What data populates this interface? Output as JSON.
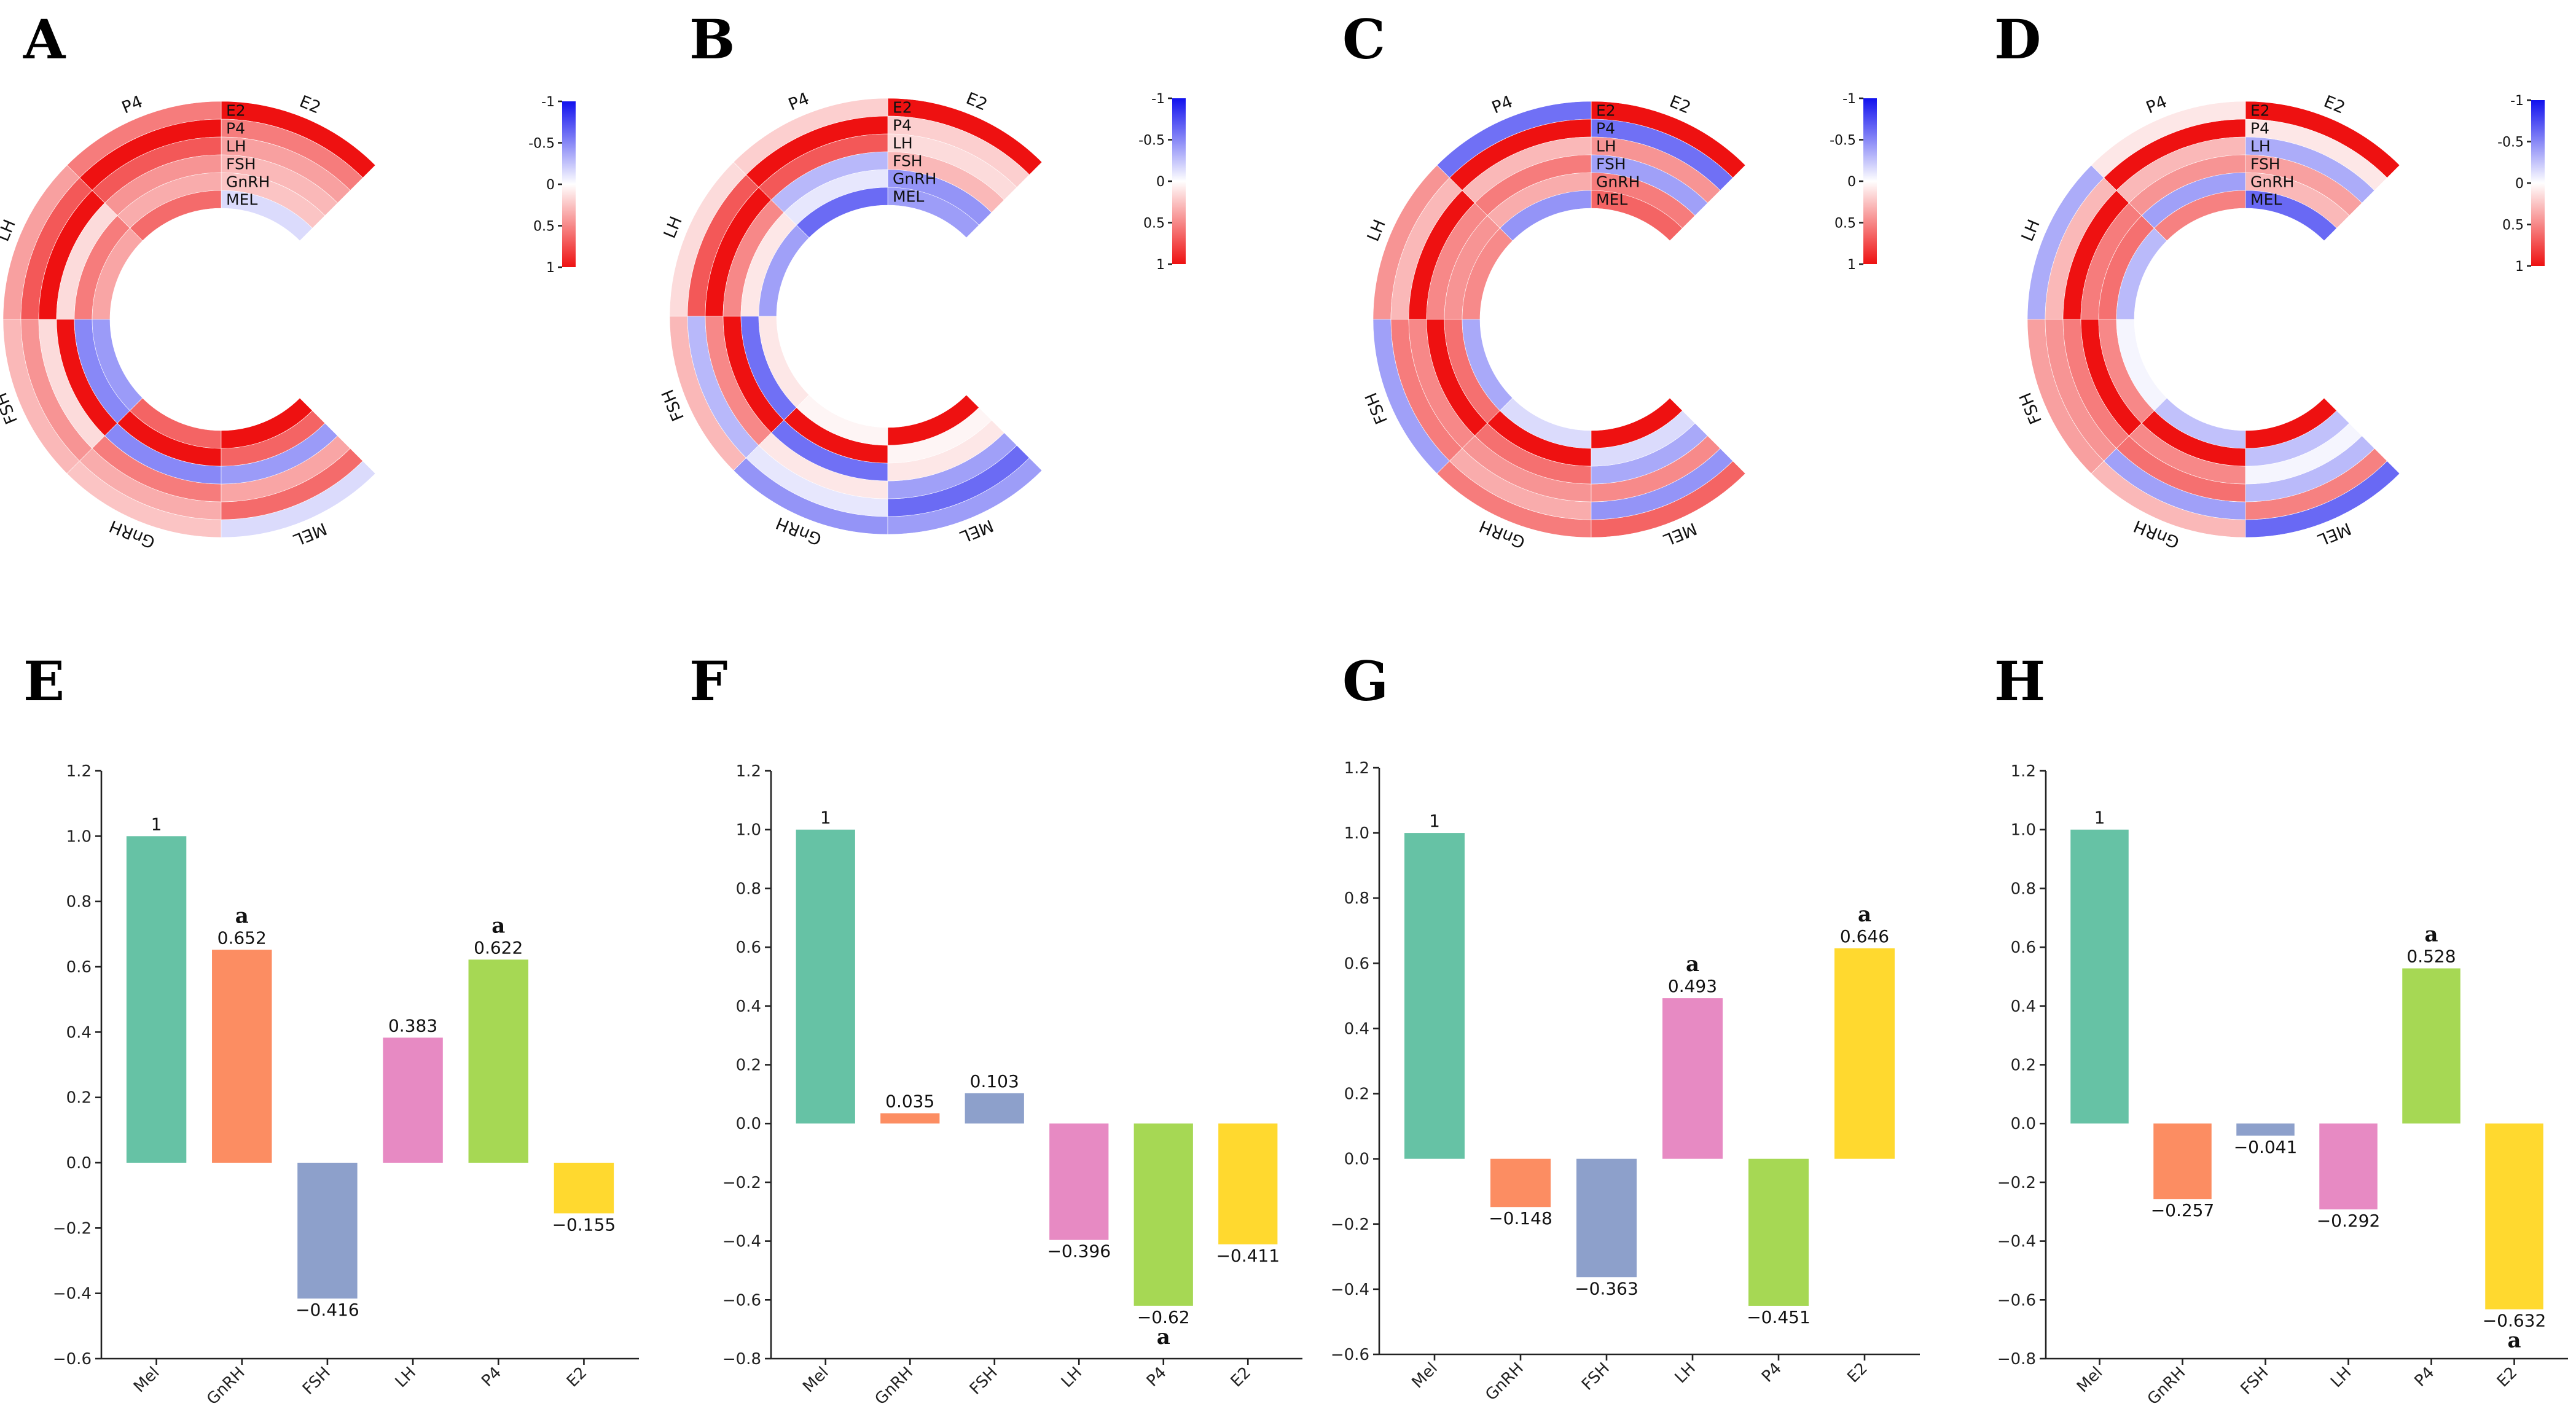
{
  "figure": {
    "panel_letters": [
      "A",
      "B",
      "C",
      "D",
      "E",
      "F",
      "G",
      "H"
    ]
  },
  "colors": {
    "negative": "#1111ee",
    "neutral": "#ffffff",
    "positive": "#ee1111",
    "bars": [
      "#66c2a5",
      "#fc8d62",
      "#8da0cb",
      "#e78ac3",
      "#a6d854",
      "#ffd92f"
    ]
  },
  "chart_data": [
    {
      "panel": "A",
      "type": "heatmap",
      "subtype": "circular-correlation",
      "variables": [
        "E2",
        "P4",
        "LH",
        "FSH",
        "GnRH",
        "MEL"
      ],
      "colorbar": {
        "ticks": [
          "-1",
          "-0.5",
          "0",
          "0.5",
          "1"
        ],
        "range": [
          -1,
          1
        ]
      },
      "values": [
        [
          1.0,
          0.55,
          0.4,
          0.3,
          0.25,
          -0.15
        ],
        [
          0.55,
          1.0,
          0.7,
          0.45,
          0.35,
          0.62
        ],
        [
          0.4,
          0.7,
          1.0,
          0.15,
          0.55,
          0.38
        ],
        [
          0.3,
          0.45,
          0.15,
          1.0,
          -0.5,
          -0.42
        ],
        [
          0.25,
          0.35,
          0.55,
          -0.5,
          1.0,
          0.65
        ],
        [
          -0.15,
          0.62,
          0.38,
          -0.42,
          0.65,
          1.0
        ]
      ]
    },
    {
      "panel": "B",
      "type": "heatmap",
      "subtype": "circular-correlation",
      "variables": [
        "E2",
        "P4",
        "LH",
        "FSH",
        "GnRH",
        "MEL"
      ],
      "colorbar": {
        "ticks": [
          "-1",
          "-0.5",
          "0",
          "0.5",
          "1"
        ],
        "range": [
          -1,
          1
        ]
      },
      "values": [
        [
          1.0,
          0.2,
          0.15,
          0.3,
          -0.45,
          -0.41
        ],
        [
          0.2,
          1.0,
          0.7,
          -0.3,
          -0.1,
          -0.62
        ],
        [
          0.15,
          0.7,
          1.0,
          0.5,
          0.1,
          -0.4
        ],
        [
          0.3,
          -0.3,
          0.5,
          1.0,
          -0.6,
          0.1
        ],
        [
          -0.45,
          -0.1,
          0.1,
          -0.6,
          1.0,
          0.04
        ],
        [
          -0.41,
          -0.62,
          -0.4,
          0.1,
          0.04,
          1.0
        ]
      ]
    },
    {
      "panel": "C",
      "type": "heatmap",
      "subtype": "circular-correlation",
      "variables": [
        "E2",
        "P4",
        "LH",
        "FSH",
        "GnRH",
        "MEL"
      ],
      "colorbar": {
        "ticks": [
          "-1",
          "-0.5",
          "0",
          "0.5",
          "1"
        ],
        "range": [
          -1,
          1
        ]
      },
      "values": [
        [
          1.0,
          -0.6,
          0.45,
          -0.4,
          0.55,
          0.65
        ],
        [
          -0.6,
          1.0,
          0.3,
          0.55,
          0.35,
          -0.45
        ],
        [
          0.45,
          0.3,
          1.0,
          0.5,
          0.45,
          0.49
        ],
        [
          -0.4,
          0.55,
          0.5,
          1.0,
          0.6,
          -0.36
        ],
        [
          0.55,
          0.35,
          0.45,
          0.6,
          1.0,
          -0.15
        ],
        [
          0.65,
          -0.45,
          0.49,
          -0.36,
          -0.15,
          1.0
        ]
      ]
    },
    {
      "panel": "D",
      "type": "heatmap",
      "subtype": "circular-correlation",
      "variables": [
        "E2",
        "P4",
        "LH",
        "FSH",
        "GnRH",
        "MEL"
      ],
      "colorbar": {
        "ticks": [
          "-1",
          "-0.5",
          "0",
          "0.5",
          "1"
        ],
        "range": [
          -1,
          1
        ]
      },
      "values": [
        [
          1.0,
          0.1,
          -0.35,
          0.4,
          0.3,
          -0.63
        ],
        [
          0.1,
          1.0,
          0.3,
          0.45,
          -0.4,
          0.53
        ],
        [
          -0.35,
          0.3,
          1.0,
          0.55,
          0.6,
          -0.29
        ],
        [
          0.4,
          0.45,
          0.55,
          1.0,
          0.5,
          -0.04
        ],
        [
          0.3,
          -0.4,
          0.6,
          0.5,
          1.0,
          -0.26
        ],
        [
          -0.63,
          0.53,
          -0.29,
          -0.04,
          -0.26,
          1.0
        ]
      ]
    },
    {
      "panel": "E",
      "type": "bar",
      "categories": [
        "Mel",
        "GnRH",
        "FSH",
        "LH",
        "P4",
        "E2"
      ],
      "values": [
        1,
        0.652,
        -0.416,
        0.383,
        0.622,
        -0.155
      ],
      "value_labels": [
        "1",
        "0.652",
        "−0.416",
        "0.383",
        "0.622",
        "−0.155"
      ],
      "significance": [
        "",
        "a",
        "",
        "",
        "a",
        ""
      ],
      "ylim": [
        -0.6,
        1.2
      ],
      "yticks": [
        -0.6,
        -0.4,
        -0.2,
        0.0,
        0.2,
        0.4,
        0.6,
        0.8,
        1.0,
        1.2
      ],
      "ytick_labels": [
        "−0.6",
        "−0.4",
        "−0.2",
        "0.0",
        "0.2",
        "0.4",
        "0.6",
        "0.8",
        "1.0",
        "1.2"
      ]
    },
    {
      "panel": "F",
      "type": "bar",
      "categories": [
        "Mel",
        "GnRH",
        "FSH",
        "LH",
        "P4",
        "E2"
      ],
      "values": [
        1,
        0.035,
        0.103,
        -0.396,
        -0.62,
        -0.411
      ],
      "value_labels": [
        "1",
        "0.035",
        "0.103",
        "−0.396",
        "−0.62",
        "−0.411"
      ],
      "significance": [
        "",
        "",
        "",
        "",
        "a",
        ""
      ],
      "ylim": [
        -0.8,
        1.2
      ],
      "yticks": [
        -0.8,
        -0.6,
        -0.4,
        -0.2,
        0.0,
        0.2,
        0.4,
        0.6,
        0.8,
        1.0,
        1.2
      ],
      "ytick_labels": [
        "−0.8",
        "−0.6",
        "−0.4",
        "−0.2",
        "0.0",
        "0.2",
        "0.4",
        "0.6",
        "0.8",
        "1.0",
        "1.2"
      ]
    },
    {
      "panel": "G",
      "type": "bar",
      "categories": [
        "Mel",
        "GnRH",
        "FSH",
        "LH",
        "P4",
        "E2"
      ],
      "values": [
        1,
        -0.148,
        -0.363,
        0.493,
        -0.451,
        0.646
      ],
      "value_labels": [
        "1",
        "−0.148",
        "−0.363",
        "0.493",
        "−0.451",
        "0.646"
      ],
      "significance": [
        "",
        "",
        "",
        "a",
        "",
        "a"
      ],
      "ylim": [
        -0.6,
        1.2
      ],
      "yticks": [
        -0.6,
        -0.4,
        -0.2,
        0.0,
        0.2,
        0.4,
        0.6,
        0.8,
        1.0,
        1.2
      ],
      "ytick_labels": [
        "−0.6",
        "−0.4",
        "−0.2",
        "0.0",
        "0.2",
        "0.4",
        "0.6",
        "0.8",
        "1.0",
        "1.2"
      ]
    },
    {
      "panel": "H",
      "type": "bar",
      "categories": [
        "Mel",
        "GnRH",
        "FSH",
        "LH",
        "P4",
        "E2"
      ],
      "values": [
        1,
        -0.257,
        -0.041,
        -0.292,
        0.528,
        -0.632
      ],
      "value_labels": [
        "1",
        "−0.257",
        "−0.041",
        "−0.292",
        "0.528",
        "−0.632"
      ],
      "significance": [
        "",
        "",
        "",
        "",
        "a",
        "a"
      ],
      "ylim": [
        -0.8,
        1.2
      ],
      "yticks": [
        -0.8,
        -0.6,
        -0.4,
        -0.2,
        0.0,
        0.2,
        0.4,
        0.6,
        0.8,
        1.0,
        1.2
      ],
      "ytick_labels": [
        "−0.8",
        "−0.6",
        "−0.4",
        "−0.2",
        "0.0",
        "0.2",
        "0.4",
        "0.6",
        "0.8",
        "1.0",
        "1.2"
      ]
    }
  ]
}
